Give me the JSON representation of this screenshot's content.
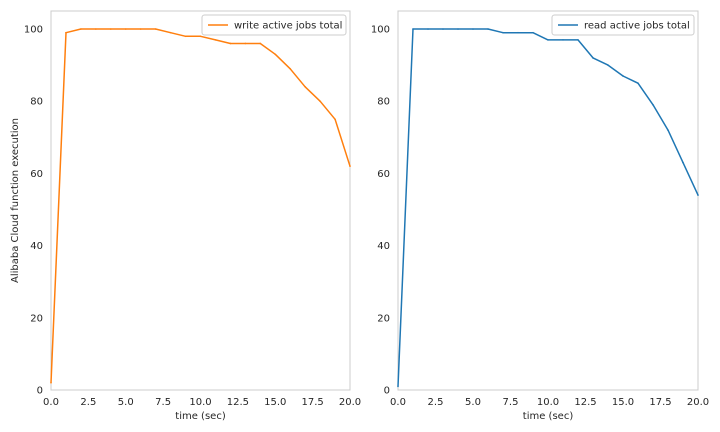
{
  "chart_data": [
    {
      "type": "line",
      "xlabel": "time (sec)",
      "ylabel": "Alibaba Cloud function execution",
      "xlim": [
        0,
        20
      ],
      "ylim": [
        0,
        105
      ],
      "xticks": [
        "0.0",
        "2.5",
        "5.0",
        "7.5",
        "10.0",
        "12.5",
        "15.0",
        "17.5",
        "20.0"
      ],
      "yticks": [
        "0",
        "20",
        "40",
        "60",
        "80",
        "100"
      ],
      "grid": false,
      "legend_position": "top-right",
      "series": [
        {
          "name": "write active jobs total",
          "color": "#ff7f0e",
          "x": [
            0,
            1,
            2,
            3,
            4,
            5,
            6,
            7,
            8,
            9,
            10,
            11,
            12,
            13,
            14,
            15,
            16,
            17,
            18,
            19,
            20
          ],
          "y": [
            2,
            99,
            100,
            100,
            100,
            100,
            100,
            100,
            99,
            98,
            98,
            97,
            96,
            96,
            96,
            93,
            89,
            84,
            80,
            75,
            62
          ]
        }
      ]
    },
    {
      "type": "line",
      "xlabel": "time (sec)",
      "ylabel": "",
      "xlim": [
        0,
        20
      ],
      "ylim": [
        0,
        105
      ],
      "xticks": [
        "0.0",
        "2.5",
        "5.0",
        "7.5",
        "10.0",
        "12.5",
        "15.0",
        "17.5",
        "20.0"
      ],
      "yticks": [
        "0",
        "20",
        "40",
        "60",
        "80",
        "100"
      ],
      "grid": false,
      "legend_position": "top-right",
      "series": [
        {
          "name": "read active jobs total",
          "color": "#1f77b4",
          "x": [
            0,
            1,
            2,
            3,
            4,
            5,
            6,
            7,
            8,
            9,
            10,
            11,
            12,
            13,
            14,
            15,
            16,
            17,
            18,
            19,
            20
          ],
          "y": [
            1,
            100,
            100,
            100,
            100,
            100,
            100,
            99,
            99,
            99,
            97,
            97,
            97,
            92,
            90,
            87,
            85,
            79,
            72,
            63,
            54
          ]
        }
      ]
    }
  ]
}
